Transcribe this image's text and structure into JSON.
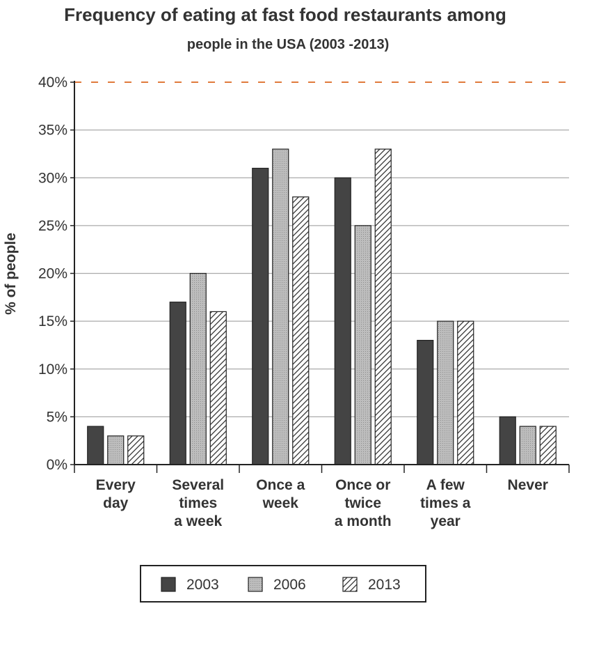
{
  "chart_data": {
    "type": "bar",
    "title": "Frequency of eating at fast food restaurants among",
    "subtitle": "people in the USA (2003 -2013)",
    "xlabel": "",
    "ylabel": "% of people",
    "ylim": [
      0,
      40
    ],
    "yticks": [
      "0%",
      "5%",
      "10%",
      "15%",
      "20%",
      "25%",
      "30%",
      "35%",
      "40%"
    ],
    "categories": [
      [
        "Every",
        "day"
      ],
      [
        "Several",
        "times",
        "a week"
      ],
      [
        "Once a",
        "week"
      ],
      [
        "Once or",
        "twice",
        "a month"
      ],
      [
        "A few",
        "times a",
        "year"
      ],
      [
        "Never"
      ]
    ],
    "series": [
      {
        "name": "2003",
        "values": [
          4,
          17,
          31,
          30,
          13,
          5
        ]
      },
      {
        "name": "2006",
        "values": [
          3,
          20,
          33,
          25,
          15,
          4
        ]
      },
      {
        "name": "2013",
        "values": [
          3,
          16,
          28,
          33,
          15,
          4
        ]
      }
    ],
    "grid": true,
    "legend_position": "bottom",
    "colors": {
      "2003": "#444444",
      "2006": "#b8b8b8",
      "2013": "#ffffff",
      "grid": "#aaaaaa",
      "top_gridline": "#e07a3c",
      "axis": "#222222"
    }
  }
}
